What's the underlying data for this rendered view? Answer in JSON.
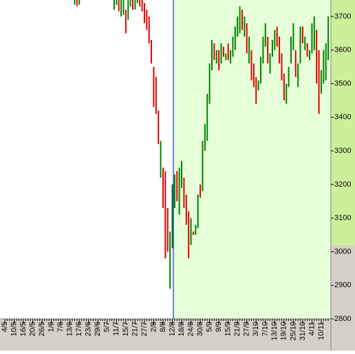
{
  "chart_data": {
    "type": "range-bar",
    "categories": [
      "4/5",
      null,
      null,
      null,
      "10/5",
      null,
      null,
      null,
      "16/5",
      null,
      null,
      null,
      "20/5",
      null,
      null,
      null,
      "26/5",
      null,
      null,
      null,
      "1/6",
      null,
      null,
      null,
      "7/6",
      null,
      null,
      null,
      "13/6",
      null,
      null,
      null,
      "17/6",
      null,
      null,
      null,
      "23/6",
      null,
      null,
      null,
      "29/6",
      null,
      null,
      null,
      "5/7",
      null,
      null,
      null,
      "11/7",
      null,
      null,
      null,
      "15/7",
      null,
      null,
      null,
      "21/7",
      null,
      null,
      null,
      "27/7",
      null,
      null,
      null,
      "2/8",
      null,
      null,
      null,
      "8/8",
      null,
      null,
      null,
      "12/8",
      null,
      null,
      null,
      "18/8",
      null,
      null,
      null,
      "24/8",
      null,
      null,
      null,
      "30/8",
      null,
      null,
      null,
      "5/9",
      null,
      null,
      null,
      "9/9",
      null,
      null,
      null,
      "15/9",
      null,
      null,
      null,
      "21/9",
      null,
      null,
      null,
      "27/9",
      null,
      null,
      null,
      "3/10",
      null,
      null,
      null,
      "7/10",
      null,
      null,
      null,
      "13/10",
      null,
      null,
      null,
      "19/10",
      null,
      null,
      null,
      "25/10",
      null,
      null,
      null,
      "31/10",
      null,
      null,
      null,
      "4/11",
      null,
      null,
      null,
      "10/11",
      null,
      null,
      null
    ],
    "high": [
      null,
      null,
      null,
      null,
      null,
      null,
      null,
      null,
      null,
      null,
      null,
      null,
      null,
      null,
      null,
      null,
      null,
      null,
      null,
      null,
      null,
      null,
      null,
      null,
      null,
      null,
      null,
      null,
      null,
      null,
      3760,
      3755,
      3760,
      null,
      null,
      null,
      null,
      null,
      null,
      null,
      null,
      null,
      null,
      null,
      null,
      null,
      null,
      3770,
      3760,
      3770,
      3765,
      3760,
      3720,
      3760,
      3770,
      3770,
      3760,
      3770,
      3770,
      3755,
      3740,
      3720,
      3700,
      3630,
      3550,
      3520,
      3420,
      3330,
      3250,
      3240,
      3130,
      3060,
      3200,
      3230,
      3240,
      3250,
      3270,
      3220,
      3170,
      3120,
      3100,
      3060,
      3080,
      3170,
      3200,
      3330,
      3380,
      3470,
      3560,
      3630,
      3620,
      3600,
      3600,
      3620,
      3610,
      3590,
      3620,
      3600,
      3640,
      3670,
      3700,
      3730,
      3720,
      3700,
      3680,
      3640,
      3600,
      3560,
      3520,
      3510,
      3580,
      3640,
      3680,
      3640,
      3590,
      3630,
      3660,
      3670,
      3640,
      3590,
      3530,
      3500,
      3550,
      3640,
      3680,
      3600,
      3560,
      3670,
      3670,
      3640,
      3620,
      3600,
      3680,
      3700,
      3660,
      3600,
      3540,
      3600,
      3620,
      3700
    ],
    "low": [
      null,
      null,
      null,
      null,
      null,
      null,
      null,
      null,
      null,
      null,
      null,
      null,
      null,
      null,
      null,
      null,
      null,
      null,
      null,
      null,
      null,
      null,
      null,
      null,
      null,
      null,
      null,
      null,
      null,
      null,
      3735,
      3730,
      3735,
      null,
      null,
      null,
      null,
      null,
      null,
      null,
      null,
      null,
      null,
      null,
      null,
      null,
      null,
      3720,
      3735,
      3715,
      3700,
      3705,
      3650,
      3690,
      3730,
      3720,
      3720,
      3740,
      3730,
      3715,
      3680,
      3660,
      3620,
      3560,
      3430,
      3410,
      3320,
      3220,
      3130,
      2980,
      3000,
      2890,
      3010,
      3130,
      3150,
      3110,
      3190,
      3130,
      3080,
      2980,
      3020,
      3050,
      3050,
      3070,
      3160,
      3180,
      3300,
      3330,
      3440,
      3540,
      3570,
      3560,
      3540,
      3560,
      3580,
      3570,
      3570,
      3560,
      3580,
      3600,
      3640,
      3650,
      3660,
      3640,
      3590,
      3560,
      3510,
      3490,
      3440,
      3480,
      3500,
      3560,
      3610,
      3560,
      3530,
      3580,
      3600,
      3610,
      3560,
      3510,
      3450,
      3440,
      3490,
      3560,
      3600,
      3520,
      3490,
      3560,
      3620,
      3600,
      3580,
      3570,
      3590,
      3600,
      3500,
      3410,
      3470,
      3500,
      3510,
      3570
    ],
    "colors": [
      null,
      null,
      null,
      null,
      null,
      null,
      null,
      null,
      null,
      null,
      null,
      null,
      null,
      null,
      null,
      null,
      null,
      null,
      null,
      null,
      null,
      null,
      null,
      null,
      null,
      null,
      null,
      null,
      null,
      null,
      "#008000",
      "#e00000",
      "#008000",
      null,
      null,
      null,
      null,
      null,
      null,
      null,
      null,
      null,
      null,
      null,
      null,
      null,
      null,
      "#008000",
      "#008000",
      "#e00000",
      "#008000",
      "#008000",
      "#e00000",
      "#008000",
      "#008000",
      "#e00000",
      "#008000",
      "#008000",
      "#e00000",
      "#e00000",
      "#e00000",
      "#e00000",
      "#e00000",
      "#e00000",
      "#e00000",
      "#e00000",
      "#e00000",
      "#008000",
      "#e00000",
      "#e00000",
      "#e00000",
      "#008000",
      "#008000",
      "#008000",
      "#e00000",
      "#008000",
      "#008000",
      "#e00000",
      "#e00000",
      "#e00000",
      "#008000",
      "#e00000",
      "#008000",
      "#008000",
      "#e00000",
      "#008000",
      "#008000",
      "#008000",
      "#008000",
      "#008000",
      "#e00000",
      "#008000",
      "#e00000",
      "#008000",
      "#e00000",
      "#008000",
      "#e00000",
      "#008000",
      "#008000",
      "#008000",
      "#008000",
      "#008000",
      "#e00000",
      "#008000",
      "#e00000",
      "#008000",
      "#e00000",
      "#e00000",
      "#e00000",
      "#008000",
      "#008000",
      "#008000",
      "#008000",
      "#e00000",
      "#008000",
      "#008000",
      "#008000",
      "#e00000",
      "#e00000",
      "#e00000",
      "#e00000",
      "#008000",
      "#008000",
      "#008000",
      "#008000",
      "#e00000",
      "#008000",
      "#008000",
      "#e00000",
      "#008000",
      "#e00000",
      "#008000",
      "#008000",
      "#008000",
      "#e00000",
      "#e00000",
      "#008000",
      "#008000",
      "#008000",
      "#008000"
    ],
    "ylim": [
      2800,
      3749
    ],
    "yticks": [
      2800,
      2900,
      3000,
      3100,
      3200,
      3300,
      3400,
      3500,
      3600,
      3700
    ]
  }
}
